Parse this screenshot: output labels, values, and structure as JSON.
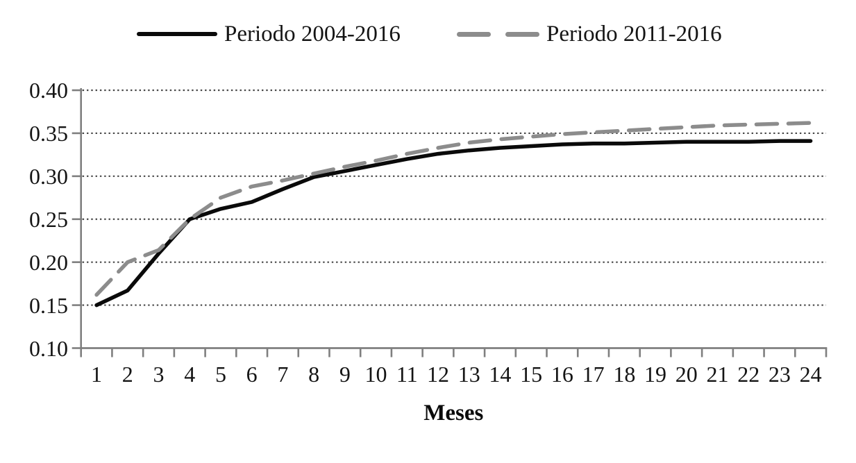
{
  "chart_data": {
    "type": "line",
    "title": "",
    "xlabel": "Meses",
    "ylabel": "",
    "x": [
      1,
      2,
      3,
      4,
      5,
      6,
      7,
      8,
      9,
      10,
      11,
      12,
      13,
      14,
      15,
      16,
      17,
      18,
      19,
      20,
      21,
      22,
      23,
      24
    ],
    "ylim": [
      0.1,
      0.4
    ],
    "yticks": [
      0.1,
      0.15,
      0.2,
      0.25,
      0.3,
      0.35,
      0.4
    ],
    "grid": "horizontal-dotted",
    "legend_position": "top-center",
    "series": [
      {
        "name": "Periodo 2004-2016",
        "style": "solid",
        "color": "#0a0a0a",
        "values": [
          0.15,
          0.167,
          0.21,
          0.25,
          0.262,
          0.27,
          0.285,
          0.299,
          0.306,
          0.313,
          0.32,
          0.326,
          0.33,
          0.333,
          0.335,
          0.337,
          0.338,
          0.338,
          0.339,
          0.34,
          0.34,
          0.34,
          0.341,
          0.341
        ]
      },
      {
        "name": "Periodo 2011-2016",
        "style": "dashed",
        "color": "#8c8c8c",
        "values": [
          0.162,
          0.2,
          0.214,
          0.25,
          0.275,
          0.288,
          0.295,
          0.303,
          0.311,
          0.318,
          0.326,
          0.333,
          0.339,
          0.343,
          0.346,
          0.349,
          0.351,
          0.353,
          0.355,
          0.357,
          0.359,
          0.36,
          0.361,
          0.362
        ]
      }
    ],
    "colors": {
      "axis": "#7f7f7f",
      "gridline": "#474747",
      "background": "#ffffff"
    }
  }
}
